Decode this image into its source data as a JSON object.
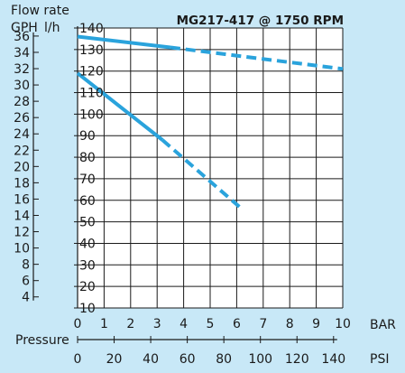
{
  "chart_data": {
    "type": "line",
    "title": "MG217-417 @ 1750 RPM",
    "ylabel": "Flow rate",
    "y_units_outer": "GPH",
    "y_units_inner": "l/h",
    "xlabel": "Pressure",
    "x_units_top": "BAR",
    "x_units_bottom": "PSI",
    "xlim": [
      0,
      10
    ],
    "ylim": [
      10,
      140
    ],
    "x_ticks_bar": [
      "0",
      "1",
      "2",
      "3",
      "4",
      "5",
      "6",
      "7",
      "8",
      "9",
      "10"
    ],
    "x_ticks_psi": [
      "0",
      "20",
      "40",
      "60",
      "80",
      "100",
      "120",
      "140"
    ],
    "y_ticks_lh": [
      "10",
      "20",
      "30",
      "40",
      "50",
      "60",
      "70",
      "80",
      "90",
      "100",
      "110",
      "120",
      "130",
      "140"
    ],
    "y_ticks_gph": [
      "4",
      "6",
      "8",
      "10",
      "12",
      "14",
      "16",
      "18",
      "20",
      "22",
      "24",
      "26",
      "28",
      "30",
      "32",
      "34",
      "36"
    ],
    "grid": true,
    "line_color": "#2aa3dc",
    "series": [
      {
        "solid": [
          [
            0,
            136
          ],
          [
            3.5,
            131
          ]
        ],
        "dashed": [
          [
            3.5,
            131
          ],
          [
            10,
            121
          ]
        ]
      },
      {
        "solid": [
          [
            0,
            119
          ],
          [
            3.2,
            88
          ]
        ],
        "dashed": [
          [
            3.2,
            88
          ],
          [
            6.1,
            57
          ]
        ]
      }
    ]
  }
}
